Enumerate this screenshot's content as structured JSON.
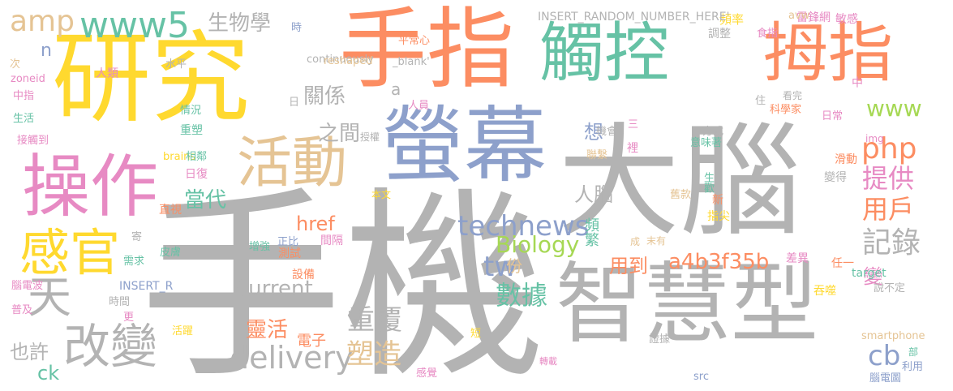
{
  "wordcloud": {
    "colors": {
      "gray": "#b3b3b3",
      "yellow": "#ffd92f",
      "orange": "#fc8d62",
      "green": "#66c2a5",
      "blue": "#8da0cb",
      "pink": "#e78ac3",
      "lime": "#a6d854",
      "tan": "#e5c494"
    },
    "words": [
      {
        "text": "手機",
        "color": "gray"
      },
      {
        "text": "大腦",
        "color": "gray"
      },
      {
        "text": "智慧型",
        "color": "gray"
      },
      {
        "text": "研究",
        "color": "yellow"
      },
      {
        "text": "手指",
        "color": "orange"
      },
      {
        "text": "觸控",
        "color": "green"
      },
      {
        "text": "拇指",
        "color": "orange"
      },
      {
        "text": "螢幕",
        "color": "blue"
      },
      {
        "text": "操作",
        "color": "pink"
      },
      {
        "text": "活動",
        "color": "tan"
      },
      {
        "text": "感官",
        "color": "yellow"
      },
      {
        "text": "改變",
        "color": "gray"
      },
      {
        "text": "天",
        "color": "gray"
      },
      {
        "text": "www5",
        "color": "green"
      },
      {
        "text": "amp",
        "color": "tan"
      },
      {
        "text": "生物學",
        "color": "gray"
      },
      {
        "text": "n",
        "color": "blue"
      },
      {
        "text": "www",
        "color": "lime"
      },
      {
        "text": "php",
        "color": "orange"
      },
      {
        "text": "technews",
        "color": "blue"
      },
      {
        "text": "delivery",
        "color": "gray"
      },
      {
        "text": "Current",
        "color": "gray"
      },
      {
        "text": "Biology",
        "color": "lime"
      },
      {
        "text": "a4b3f35b",
        "color": "orange"
      },
      {
        "text": "href",
        "color": "orange"
      },
      {
        "text": "tw",
        "color": "blue"
      },
      {
        "text": "cb",
        "color": "blue"
      },
      {
        "text": "ck",
        "color": "green"
      },
      {
        "text": "關係",
        "color": "gray"
      },
      {
        "text": "之間",
        "color": "gray"
      },
      {
        "text": "當代",
        "color": "green"
      },
      {
        "text": "人腦",
        "color": "gray"
      },
      {
        "text": "想",
        "color": "blue"
      },
      {
        "text": "提供",
        "color": "pink"
      },
      {
        "text": "用戶",
        "color": "orange"
      },
      {
        "text": "記錄",
        "color": "gray"
      },
      {
        "text": "數據",
        "color": "green"
      },
      {
        "text": "重覆",
        "color": "gray"
      },
      {
        "text": "塑造",
        "color": "tan"
      },
      {
        "text": "靈活",
        "color": "orange"
      },
      {
        "text": "用到",
        "color": "orange"
      },
      {
        "text": "份",
        "color": "tan"
      },
      {
        "text": "變",
        "color": "pink"
      },
      {
        "text": "也許",
        "color": "gray"
      },
      {
        "text": "電子",
        "color": "orange"
      },
      {
        "text": "a",
        "color": "gray"
      },
      {
        "text": "頻繁",
        "color": "green"
      },
      {
        "text": "雷鋒網",
        "color": "pink"
      },
      {
        "text": "頻率",
        "color": "yellow"
      },
      {
        "text": "INSERT_RANDOM_NUMBER_HERE'",
        "color": "gray"
      },
      {
        "text": "avw",
        "color": "tan"
      },
      {
        "text": "敏感",
        "color": "pink"
      },
      {
        "text": "時",
        "color": "blue"
      },
      {
        "text": "平常心",
        "color": "orange"
      },
      {
        "text": "調整",
        "color": "gray"
      },
      {
        "text": "食指",
        "color": "pink"
      },
      {
        "text": "continuously",
        "color": "gray"
      },
      {
        "text": "_blank'",
        "color": "gray"
      },
      {
        "text": "reshaped",
        "color": "tan"
      },
      {
        "text": "次",
        "color": "tan"
      },
      {
        "text": "水平",
        "color": "gray"
      },
      {
        "text": "人類",
        "color": "pink"
      },
      {
        "text": "zoneid",
        "color": "pink"
      },
      {
        "text": "中指",
        "color": "pink"
      },
      {
        "text": "生活",
        "color": "green"
      },
      {
        "text": "接觸到",
        "color": "pink"
      },
      {
        "text": "日",
        "color": "gray"
      },
      {
        "text": "人員",
        "color": "pink"
      },
      {
        "text": "住",
        "color": "gray"
      },
      {
        "text": "看完",
        "color": "gray"
      },
      {
        "text": "科學家",
        "color": "orange"
      },
      {
        "text": "日常",
        "color": "pink"
      },
      {
        "text": "中",
        "color": "pink"
      },
      {
        "text": "情況",
        "color": "green"
      },
      {
        "text": "重塑",
        "color": "green"
      },
      {
        "text": "授權",
        "color": "gray"
      },
      {
        "text": "三",
        "color": "pink"
      },
      {
        "text": "機會",
        "color": "gray"
      },
      {
        "text": "方式",
        "color": "gray"
      },
      {
        "text": "img",
        "color": "pink"
      },
      {
        "text": "滑動",
        "color": "orange"
      },
      {
        "text": "裡",
        "color": "pink"
      },
      {
        "text": "意味著",
        "color": "green"
      },
      {
        "text": "變得",
        "color": "gray"
      },
      {
        "text": "聯繫",
        "color": "tan"
      },
      {
        "text": "brains",
        "color": "yellow"
      },
      {
        "text": "相鄰",
        "color": "green"
      },
      {
        "text": "日復",
        "color": "pink"
      },
      {
        "text": "直視",
        "color": "orange"
      },
      {
        "text": "本文",
        "color": "yellow"
      },
      {
        "text": "生歡",
        "color": "green"
      },
      {
        "text": "舊款",
        "color": "tan"
      },
      {
        "text": "新",
        "color": "orange"
      },
      {
        "text": "指尖",
        "color": "yellow"
      },
      {
        "text": "寄",
        "color": "gray"
      },
      {
        "text": "增強",
        "color": "green"
      },
      {
        "text": "正比",
        "color": "blue"
      },
      {
        "text": "間隔",
        "color": "pink"
      },
      {
        "text": "成",
        "color": "tan"
      },
      {
        "text": "末有",
        "color": "tan"
      },
      {
        "text": "皮膚",
        "color": "green"
      },
      {
        "text": "測試",
        "color": "orange"
      },
      {
        "text": "需求",
        "color": "green"
      },
      {
        "text": "差異",
        "color": "pink"
      },
      {
        "text": "任一",
        "color": "orange"
      },
      {
        "text": "target",
        "color": "green"
      },
      {
        "text": "腦電波",
        "color": "pink"
      },
      {
        "text": "INSERT_R",
        "color": "blue"
      },
      {
        "text": "設備",
        "color": "orange"
      },
      {
        "text": "吞噬",
        "color": "yellow"
      },
      {
        "text": "說不定",
        "color": "gray"
      },
      {
        "text": "普及",
        "color": "pink"
      },
      {
        "text": "時間",
        "color": "gray"
      },
      {
        "text": "更",
        "color": "pink"
      },
      {
        "text": "活躍",
        "color": "yellow"
      },
      {
        "text": "短",
        "color": "yellow"
      },
      {
        "text": "smartphone",
        "color": "tan"
      },
      {
        "text": "證據",
        "color": "gray"
      },
      {
        "text": "部",
        "color": "green"
      },
      {
        "text": "轉載",
        "color": "pink"
      },
      {
        "text": "利用",
        "color": "blue"
      },
      {
        "text": "感覺",
        "color": "pink"
      },
      {
        "text": "src",
        "color": "blue"
      },
      {
        "text": "腦電圖",
        "color": "blue"
      }
    ]
  }
}
